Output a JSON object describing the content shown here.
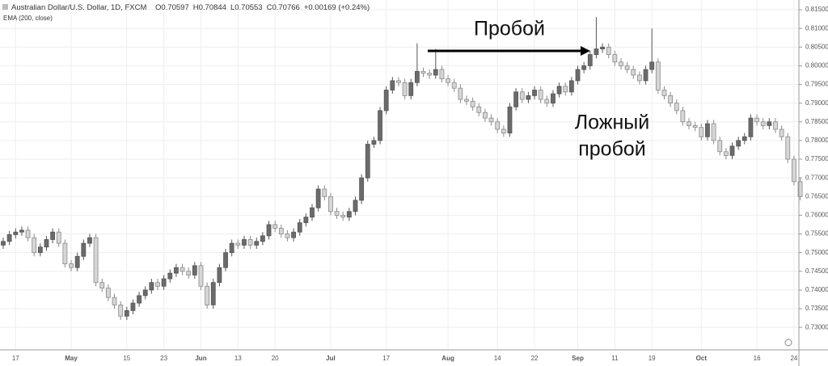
{
  "chart_data": {
    "type": "candlestick",
    "title": "Australian Dollar/U.S. Dollar, 1D, FXCM",
    "header_values": [
      {
        "key": "O",
        "value": "0.70597"
      },
      {
        "key": "H",
        "value": "0.70844"
      },
      {
        "key": "L",
        "value": "0.70553"
      },
      {
        "key": "C",
        "value": "0.70766"
      }
    ],
    "change": "+0.00169 (+0.24%)",
    "indicator": "EMA (200, close)",
    "annotations": {
      "breakout": "Пробой",
      "false_breakout": [
        "Ложный",
        "пробой"
      ]
    },
    "up_color": "#6b6b6b",
    "down_color": "#d6d6d6",
    "grid": true,
    "ylim": [
      0.7242,
      0.8176
    ],
    "yticks": [
      {
        "value": 0.73,
        "label": "0.73000"
      },
      {
        "value": 0.735,
        "label": "0.73500"
      },
      {
        "value": 0.74,
        "label": "0.74000"
      },
      {
        "value": 0.745,
        "label": "0.74500"
      },
      {
        "value": 0.75,
        "label": "0.75000"
      },
      {
        "value": 0.755,
        "label": "0.75500"
      },
      {
        "value": 0.76,
        "label": "0.76000"
      },
      {
        "value": 0.765,
        "label": "0.76500"
      },
      {
        "value": 0.77,
        "label": "0.77000"
      },
      {
        "value": 0.775,
        "label": "0.77500"
      },
      {
        "value": 0.78,
        "label": "0.78000"
      },
      {
        "value": 0.785,
        "label": "0.78500"
      },
      {
        "value": 0.79,
        "label": "0.79000"
      },
      {
        "value": 0.795,
        "label": "0.79500"
      },
      {
        "value": 0.8,
        "label": "0.80000"
      },
      {
        "value": 0.805,
        "label": "0.80500"
      },
      {
        "value": 0.81,
        "label": "0.81000"
      },
      {
        "value": 0.815,
        "label": "0.81500"
      }
    ],
    "categories": [
      null,
      null,
      "17",
      null,
      null,
      null,
      null,
      null,
      null,
      null,
      null,
      "May",
      null,
      null,
      null,
      null,
      null,
      null,
      null,
      null,
      "15",
      null,
      null,
      null,
      null,
      null,
      "23",
      null,
      null,
      null,
      null,
      null,
      "Jun",
      null,
      null,
      null,
      null,
      null,
      "13",
      null,
      null,
      null,
      null,
      null,
      "20",
      null,
      null,
      null,
      null,
      null,
      null,
      null,
      null,
      "Jul",
      null,
      null,
      null,
      null,
      null,
      null,
      null,
      null,
      "17",
      null,
      null,
      null,
      null,
      null,
      null,
      null,
      null,
      null,
      "Aug",
      null,
      null,
      null,
      null,
      null,
      null,
      null,
      "14",
      null,
      null,
      null,
      null,
      null,
      "22",
      null,
      null,
      null,
      null,
      null,
      null,
      "Sep",
      null,
      null,
      null,
      null,
      null,
      "11",
      null,
      null,
      null,
      null,
      null,
      "19",
      null,
      null,
      null,
      null,
      null,
      null,
      null,
      "Oct",
      null,
      null,
      null,
      null,
      null,
      null,
      null,
      null,
      "16",
      null,
      null,
      null,
      null,
      null,
      "24",
      null
    ],
    "open": [
      0.752,
      0.753,
      0.7548,
      0.7555,
      0.756,
      0.754,
      0.75,
      0.7515,
      0.7535,
      0.7555,
      0.7525,
      0.747,
      0.746,
      0.749,
      0.7525,
      0.754,
      0.742,
      0.7405,
      0.738,
      0.736,
      0.733,
      0.7345,
      0.7365,
      0.7385,
      0.74,
      0.742,
      0.741,
      0.743,
      0.7445,
      0.746,
      0.745,
      0.744,
      0.7465,
      0.741,
      0.736,
      0.742,
      0.746,
      0.75,
      0.7525,
      0.752,
      0.7535,
      0.752,
      0.753,
      0.7545,
      0.7575,
      0.7565,
      0.755,
      0.754,
      0.7555,
      0.758,
      0.7595,
      0.762,
      0.767,
      0.765,
      0.761,
      0.76,
      0.7595,
      0.761,
      0.764,
      0.77,
      0.779,
      0.78,
      0.788,
      0.7935,
      0.796,
      0.7955,
      0.792,
      0.7955,
      0.7985,
      0.798,
      0.7975,
      0.799,
      0.7965,
      0.7955,
      0.794,
      0.791,
      0.7905,
      0.789,
      0.7875,
      0.786,
      0.785,
      0.783,
      0.782,
      0.789,
      0.793,
      0.791,
      0.792,
      0.7935,
      0.791,
      0.79,
      0.7925,
      0.7945,
      0.793,
      0.796,
      0.799,
      0.8,
      0.803,
      0.8045,
      0.805,
      0.803,
      0.801,
      0.8,
      0.799,
      0.7975,
      0.796,
      0.799,
      0.801,
      0.7935,
      0.792,
      0.79,
      0.788,
      0.785,
      0.784,
      0.7835,
      0.781,
      0.7845,
      0.78,
      0.777,
      0.776,
      0.7785,
      0.78,
      0.781,
      0.786,
      0.785,
      0.784,
      0.785,
      0.783,
      0.781,
      0.775,
      0.769
    ],
    "high": [
      0.754,
      0.7558,
      0.7565,
      0.757,
      0.757,
      0.755,
      0.7525,
      0.7545,
      0.7565,
      0.7565,
      0.7535,
      0.748,
      0.75,
      0.7535,
      0.755,
      0.755,
      0.743,
      0.7415,
      0.739,
      0.737,
      0.7355,
      0.7375,
      0.7395,
      0.741,
      0.743,
      0.743,
      0.744,
      0.7455,
      0.747,
      0.747,
      0.746,
      0.7475,
      0.7475,
      0.742,
      0.743,
      0.747,
      0.751,
      0.7535,
      0.7535,
      0.7545,
      0.7545,
      0.754,
      0.7555,
      0.7585,
      0.7585,
      0.7575,
      0.756,
      0.7565,
      0.759,
      0.7605,
      0.763,
      0.768,
      0.768,
      0.766,
      0.762,
      0.761,
      0.762,
      0.765,
      0.771,
      0.78,
      0.781,
      0.789,
      0.7945,
      0.797,
      0.797,
      0.7965,
      0.7965,
      0.806,
      0.7995,
      0.799,
      0.8045,
      0.8,
      0.7975,
      0.7965,
      0.795,
      0.792,
      0.7915,
      0.79,
      0.7885,
      0.787,
      0.786,
      0.784,
      0.79,
      0.794,
      0.794,
      0.793,
      0.7945,
      0.7945,
      0.792,
      0.7935,
      0.7955,
      0.7955,
      0.797,
      0.8,
      0.801,
      0.804,
      0.813,
      0.806,
      0.806,
      0.804,
      0.802,
      0.801,
      0.8,
      0.7985,
      0.8,
      0.81,
      0.802,
      0.7945,
      0.793,
      0.791,
      0.789,
      0.786,
      0.785,
      0.7845,
      0.7855,
      0.7855,
      0.781,
      0.778,
      0.7795,
      0.781,
      0.782,
      0.787,
      0.787,
      0.786,
      0.786,
      0.786,
      0.784,
      0.782,
      0.776,
      0.77
    ],
    "low": [
      0.751,
      0.752,
      0.7538,
      0.7545,
      0.753,
      0.749,
      0.749,
      0.7505,
      0.7525,
      0.7515,
      0.746,
      0.745,
      0.745,
      0.748,
      0.7515,
      0.741,
      0.7395,
      0.737,
      0.735,
      0.732,
      0.732,
      0.7335,
      0.7355,
      0.7375,
      0.739,
      0.74,
      0.74,
      0.742,
      0.7435,
      0.744,
      0.743,
      0.743,
      0.74,
      0.735,
      0.735,
      0.741,
      0.745,
      0.749,
      0.751,
      0.751,
      0.751,
      0.751,
      0.752,
      0.7535,
      0.7555,
      0.754,
      0.753,
      0.753,
      0.7545,
      0.757,
      0.7585,
      0.761,
      0.764,
      0.76,
      0.759,
      0.7585,
      0.7585,
      0.76,
      0.763,
      0.769,
      0.778,
      0.779,
      0.787,
      0.7925,
      0.7945,
      0.791,
      0.791,
      0.7945,
      0.797,
      0.7965,
      0.7965,
      0.7955,
      0.7945,
      0.793,
      0.79,
      0.7895,
      0.788,
      0.7865,
      0.785,
      0.784,
      0.782,
      0.781,
      0.781,
      0.788,
      0.79,
      0.79,
      0.791,
      0.79,
      0.789,
      0.789,
      0.7915,
      0.792,
      0.792,
      0.795,
      0.798,
      0.799,
      0.802,
      0.8035,
      0.802,
      0.8,
      0.799,
      0.798,
      0.7965,
      0.795,
      0.795,
      0.798,
      0.7925,
      0.791,
      0.789,
      0.787,
      0.784,
      0.783,
      0.7825,
      0.78,
      0.78,
      0.779,
      0.776,
      0.775,
      0.775,
      0.7775,
      0.779,
      0.78,
      0.784,
      0.783,
      0.783,
      0.782,
      0.78,
      0.774,
      0.768,
      0.764
    ],
    "close": [
      0.753,
      0.7548,
      0.7555,
      0.756,
      0.754,
      0.75,
      0.7515,
      0.7535,
      0.7555,
      0.7525,
      0.747,
      0.746,
      0.749,
      0.7525,
      0.754,
      0.742,
      0.7405,
      0.738,
      0.736,
      0.733,
      0.7345,
      0.7365,
      0.7385,
      0.74,
      0.742,
      0.741,
      0.743,
      0.7445,
      0.746,
      0.745,
      0.744,
      0.7465,
      0.741,
      0.736,
      0.742,
      0.746,
      0.75,
      0.7525,
      0.752,
      0.7535,
      0.752,
      0.753,
      0.7545,
      0.7575,
      0.7565,
      0.755,
      0.754,
      0.7555,
      0.758,
      0.7595,
      0.762,
      0.767,
      0.765,
      0.761,
      0.76,
      0.7595,
      0.761,
      0.764,
      0.77,
      0.779,
      0.78,
      0.788,
      0.7935,
      0.796,
      0.7955,
      0.792,
      0.7955,
      0.7985,
      0.798,
      0.7975,
      0.799,
      0.7965,
      0.7955,
      0.794,
      0.791,
      0.7905,
      0.789,
      0.7875,
      0.786,
      0.785,
      0.783,
      0.782,
      0.789,
      0.793,
      0.791,
      0.792,
      0.7935,
      0.791,
      0.79,
      0.7925,
      0.7945,
      0.793,
      0.796,
      0.799,
      0.8,
      0.803,
      0.8045,
      0.805,
      0.803,
      0.801,
      0.8,
      0.799,
      0.7975,
      0.796,
      0.799,
      0.801,
      0.7935,
      0.792,
      0.79,
      0.788,
      0.785,
      0.784,
      0.7835,
      0.781,
      0.7845,
      0.78,
      0.777,
      0.776,
      0.7785,
      0.78,
      0.781,
      0.786,
      0.785,
      0.784,
      0.785,
      0.783,
      0.781,
      0.775,
      0.769,
      0.765
    ]
  }
}
